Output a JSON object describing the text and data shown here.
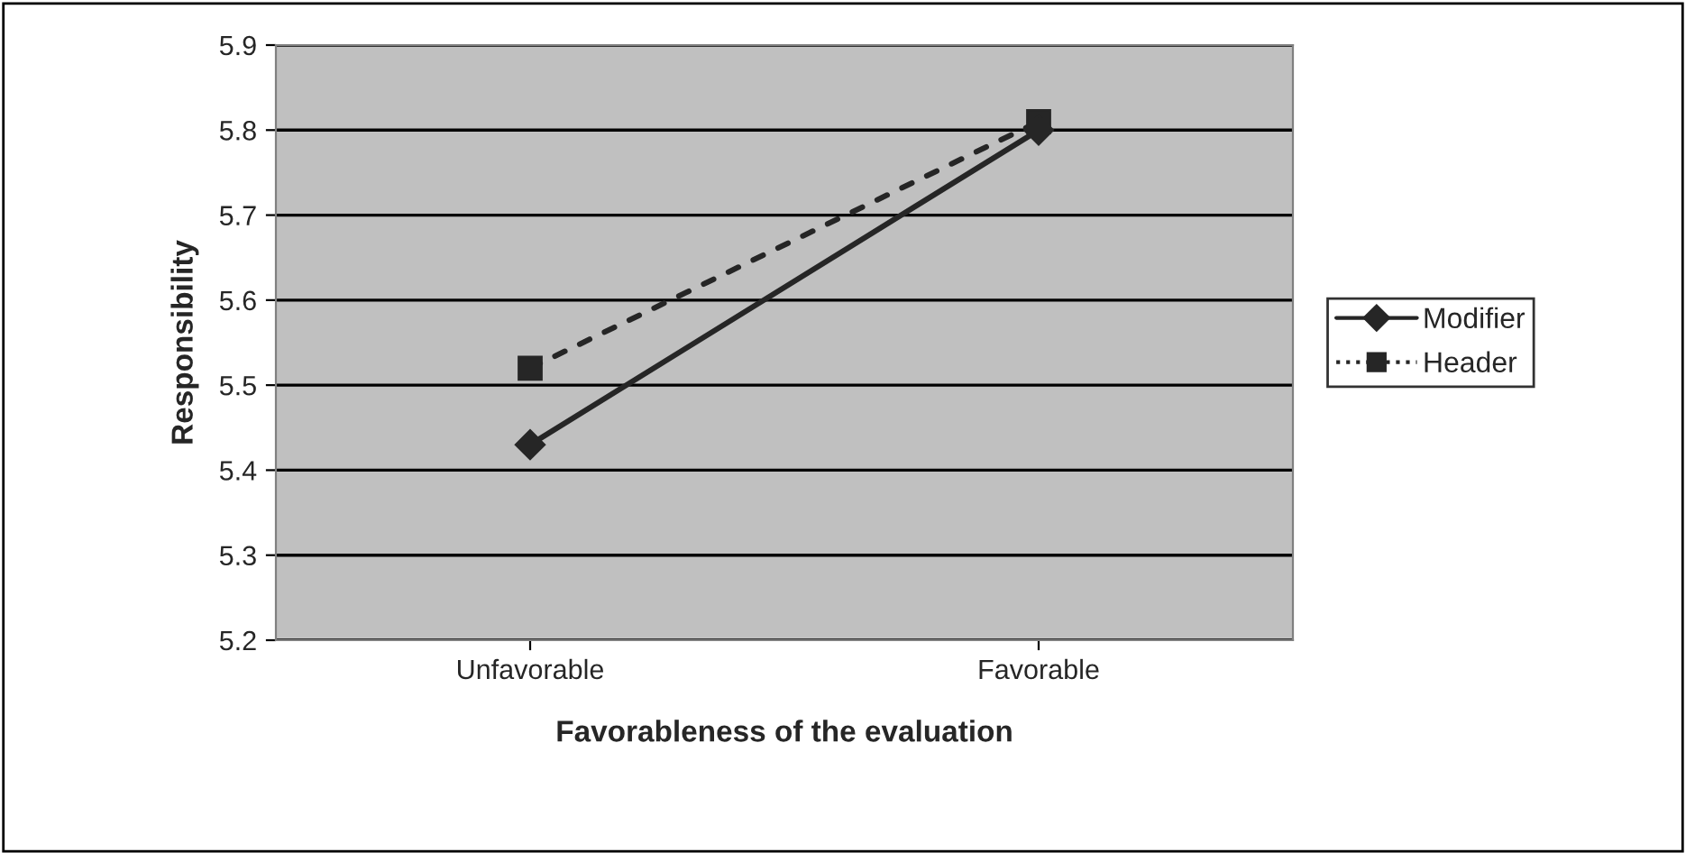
{
  "chart_data": {
    "type": "line",
    "xlabel": "Favorableness of the evaluation",
    "ylabel": "Responsibility",
    "categories": [
      "Unfavorable",
      "Favorable"
    ],
    "series": [
      {
        "name": "Modifier",
        "color": "#262626",
        "values": [
          5.43,
          5.8
        ],
        "marker": "diamond",
        "line_style": "solid"
      },
      {
        "name": "Header",
        "color": "#262626",
        "values": [
          5.52,
          5.81
        ],
        "marker": "square",
        "line_style": "dotted"
      }
    ],
    "ylim": [
      5.2,
      5.9
    ],
    "yticks": [
      5.2,
      5.3,
      5.4,
      5.5,
      5.6,
      5.7,
      5.8,
      5.9
    ],
    "grid": "y",
    "legend": "right"
  }
}
